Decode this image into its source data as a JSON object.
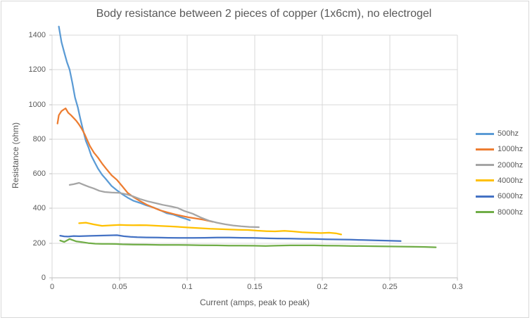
{
  "chart_data": {
    "type": "line",
    "title": "Body resistance between 2 pieces of copper (1x6cm), no electrogel",
    "xlabel": "Current (amps, peak to peak)",
    "ylabel": "Resistance (ohm)",
    "xlim": [
      0,
      0.3
    ],
    "ylim": [
      0,
      1400
    ],
    "grid": true,
    "legend_position": "right",
    "xticks": {
      "values": [
        0,
        0.05,
        0.1,
        0.15,
        0.2,
        0.25,
        0.3
      ],
      "labels": [
        "0",
        "0.05",
        "0.1",
        "0.15",
        "0.2",
        "0.25",
        "0.3"
      ]
    },
    "yticks": {
      "values": [
        0,
        200,
        400,
        600,
        800,
        1000,
        1200,
        1400
      ],
      "labels": [
        "0",
        "200",
        "400",
        "600",
        "800",
        "1000",
        "1200",
        "1400"
      ]
    },
    "series": [
      {
        "name": "500hz",
        "color": "#5B9BD5",
        "points": [
          [
            0.005,
            1450
          ],
          [
            0.007,
            1360
          ],
          [
            0.009,
            1300
          ],
          [
            0.011,
            1245
          ],
          [
            0.013,
            1200
          ],
          [
            0.015,
            1125
          ],
          [
            0.017,
            1040
          ],
          [
            0.019,
            985
          ],
          [
            0.021,
            915
          ],
          [
            0.023,
            850
          ],
          [
            0.025,
            790
          ],
          [
            0.027,
            752
          ],
          [
            0.029,
            705
          ],
          [
            0.032,
            660
          ],
          [
            0.034,
            630
          ],
          [
            0.037,
            595
          ],
          [
            0.04,
            568
          ],
          [
            0.044,
            530
          ],
          [
            0.048,
            505
          ],
          [
            0.052,
            482
          ],
          [
            0.056,
            462
          ],
          [
            0.06,
            445
          ],
          [
            0.065,
            432
          ],
          [
            0.07,
            417
          ],
          [
            0.075,
            406
          ],
          [
            0.08,
            390
          ],
          [
            0.085,
            372
          ],
          [
            0.09,
            364
          ],
          [
            0.095,
            350
          ],
          [
            0.099,
            340
          ],
          [
            0.102,
            332
          ]
        ]
      },
      {
        "name": "1000hz",
        "color": "#ED7D31",
        "points": [
          [
            0.004,
            890
          ],
          [
            0.005,
            938
          ],
          [
            0.007,
            962
          ],
          [
            0.01,
            978
          ],
          [
            0.012,
            952
          ],
          [
            0.014,
            938
          ],
          [
            0.016,
            922
          ],
          [
            0.018,
            905
          ],
          [
            0.02,
            884
          ],
          [
            0.022,
            860
          ],
          [
            0.024,
            830
          ],
          [
            0.026,
            795
          ],
          [
            0.028,
            760
          ],
          [
            0.031,
            722
          ],
          [
            0.034,
            693
          ],
          [
            0.037,
            660
          ],
          [
            0.04,
            630
          ],
          [
            0.044,
            592
          ],
          [
            0.048,
            565
          ],
          [
            0.052,
            528
          ],
          [
            0.056,
            490
          ],
          [
            0.06,
            467
          ],
          [
            0.065,
            443
          ],
          [
            0.07,
            422
          ],
          [
            0.075,
            405
          ],
          [
            0.08,
            389
          ],
          [
            0.086,
            376
          ],
          [
            0.091,
            366
          ],
          [
            0.096,
            357
          ],
          [
            0.101,
            349
          ],
          [
            0.106,
            343
          ],
          [
            0.112,
            335
          ],
          [
            0.119,
            323
          ]
        ]
      },
      {
        "name": "2000hz",
        "color": "#A5A5A5",
        "points": [
          [
            0.013,
            536
          ],
          [
            0.016,
            540
          ],
          [
            0.02,
            548
          ],
          [
            0.023,
            538
          ],
          [
            0.027,
            526
          ],
          [
            0.031,
            515
          ],
          [
            0.035,
            502
          ],
          [
            0.039,
            495
          ],
          [
            0.044,
            492
          ],
          [
            0.05,
            490
          ],
          [
            0.055,
            482
          ],
          [
            0.06,
            470
          ],
          [
            0.065,
            455
          ],
          [
            0.071,
            441
          ],
          [
            0.077,
            430
          ],
          [
            0.082,
            421
          ],
          [
            0.088,
            412
          ],
          [
            0.093,
            403
          ],
          [
            0.098,
            385
          ],
          [
            0.104,
            370
          ],
          [
            0.11,
            348
          ],
          [
            0.116,
            330
          ],
          [
            0.122,
            318
          ],
          [
            0.128,
            309
          ],
          [
            0.134,
            302
          ],
          [
            0.14,
            297
          ],
          [
            0.146,
            294
          ],
          [
            0.153,
            292
          ]
        ]
      },
      {
        "name": "4000hz",
        "color": "#FFC000",
        "points": [
          [
            0.02,
            315
          ],
          [
            0.025,
            318
          ],
          [
            0.031,
            308
          ],
          [
            0.037,
            300
          ],
          [
            0.045,
            303
          ],
          [
            0.05,
            305
          ],
          [
            0.055,
            304
          ],
          [
            0.06,
            303
          ],
          [
            0.065,
            304
          ],
          [
            0.07,
            303
          ],
          [
            0.075,
            301
          ],
          [
            0.08,
            299
          ],
          [
            0.086,
            297
          ],
          [
            0.091,
            295
          ],
          [
            0.097,
            292
          ],
          [
            0.103,
            289
          ],
          [
            0.11,
            286
          ],
          [
            0.117,
            283
          ],
          [
            0.124,
            281
          ],
          [
            0.131,
            279
          ],
          [
            0.138,
            277
          ],
          [
            0.145,
            276
          ],
          [
            0.152,
            272
          ],
          [
            0.159,
            269
          ],
          [
            0.165,
            268
          ],
          [
            0.172,
            271
          ],
          [
            0.178,
            268
          ],
          [
            0.185,
            263
          ],
          [
            0.192,
            260
          ],
          [
            0.199,
            258
          ],
          [
            0.205,
            260
          ],
          [
            0.21,
            257
          ],
          [
            0.214,
            250
          ]
        ]
      },
      {
        "name": "6000hz",
        "color": "#4472C4",
        "points": [
          [
            0.006,
            243
          ],
          [
            0.009,
            239
          ],
          [
            0.012,
            238
          ],
          [
            0.016,
            241
          ],
          [
            0.02,
            240
          ],
          [
            0.024,
            241
          ],
          [
            0.028,
            242
          ],
          [
            0.033,
            243
          ],
          [
            0.038,
            244
          ],
          [
            0.043,
            245
          ],
          [
            0.048,
            246
          ],
          [
            0.053,
            240
          ],
          [
            0.058,
            236
          ],
          [
            0.063,
            234
          ],
          [
            0.07,
            233
          ],
          [
            0.078,
            232
          ],
          [
            0.086,
            231
          ],
          [
            0.095,
            230
          ],
          [
            0.104,
            230
          ],
          [
            0.113,
            231
          ],
          [
            0.122,
            232
          ],
          [
            0.131,
            232
          ],
          [
            0.14,
            231
          ],
          [
            0.149,
            230
          ],
          [
            0.158,
            228
          ],
          [
            0.167,
            227
          ],
          [
            0.176,
            226
          ],
          [
            0.185,
            225
          ],
          [
            0.194,
            224
          ],
          [
            0.203,
            222
          ],
          [
            0.212,
            221
          ],
          [
            0.221,
            220
          ],
          [
            0.23,
            218
          ],
          [
            0.239,
            216
          ],
          [
            0.249,
            214
          ],
          [
            0.258,
            212
          ]
        ]
      },
      {
        "name": "8000hz",
        "color": "#70AD47",
        "points": [
          [
            0.006,
            215
          ],
          [
            0.009,
            207
          ],
          [
            0.013,
            224
          ],
          [
            0.018,
            210
          ],
          [
            0.022,
            206
          ],
          [
            0.027,
            200
          ],
          [
            0.032,
            197
          ],
          [
            0.037,
            196
          ],
          [
            0.042,
            196
          ],
          [
            0.047,
            195
          ],
          [
            0.052,
            193
          ],
          [
            0.06,
            192
          ],
          [
            0.07,
            191
          ],
          [
            0.08,
            190
          ],
          [
            0.09,
            190
          ],
          [
            0.1,
            189
          ],
          [
            0.11,
            188
          ],
          [
            0.122,
            187
          ],
          [
            0.131,
            186
          ],
          [
            0.14,
            186
          ],
          [
            0.149,
            185
          ],
          [
            0.158,
            184
          ],
          [
            0.167,
            186
          ],
          [
            0.176,
            187
          ],
          [
            0.185,
            187
          ],
          [
            0.194,
            187
          ],
          [
            0.203,
            186
          ],
          [
            0.212,
            185
          ],
          [
            0.221,
            184
          ],
          [
            0.23,
            183
          ],
          [
            0.239,
            182
          ],
          [
            0.249,
            181
          ],
          [
            0.258,
            180
          ],
          [
            0.268,
            179
          ],
          [
            0.276,
            178
          ],
          [
            0.284,
            176
          ]
        ]
      }
    ]
  },
  "colors": {
    "background": "#FFFFFF",
    "frame_border": "#D9D9D9",
    "gridline": "#D9D9D9",
    "axis_line": "#BFBFBF",
    "text": "#595959",
    "title": "#595959"
  }
}
